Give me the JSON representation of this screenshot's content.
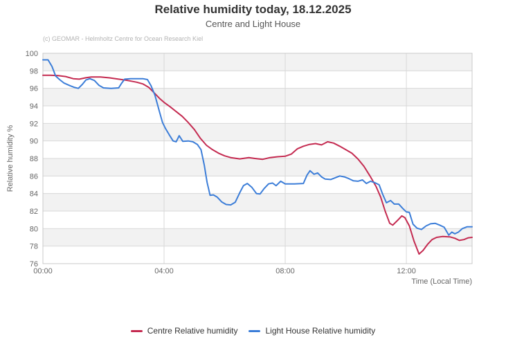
{
  "chart": {
    "title": "Relative humidity today, 18.12.2025",
    "subtitle": "Centre and Light House",
    "credit": "(c) GEOMAR - Helmholtz Centre for Ocean Research Kiel"
  },
  "legend": {
    "items": [
      {
        "label": "Centre Relative humidity",
        "color": "#c42a50"
      },
      {
        "label": "Light House Relative humidity",
        "color": "#3b7dd8"
      }
    ]
  },
  "chart_data": {
    "type": "line",
    "title": "Relative humidity today, 18.12.2025",
    "subtitle": "Centre and Light House",
    "xlabel": "Time (Local Time)",
    "ylabel": "Relative humidity %",
    "xlim": [
      0,
      14.17
    ],
    "ylim": [
      76,
      100
    ],
    "grid": true,
    "alternating_bands": true,
    "legend_position": "bottom",
    "colors": {
      "band": "#f2f2f2",
      "gridline": "#d8d8d8",
      "plot_border": "#c9c9c9",
      "tick_label": "#666666",
      "axis_title": "#666666"
    },
    "yticks": [
      76,
      78,
      80,
      82,
      84,
      86,
      88,
      90,
      92,
      94,
      96,
      98,
      100
    ],
    "xticks": [
      {
        "hour": 0,
        "label": "00:00"
      },
      {
        "hour": 4,
        "label": "04:00"
      },
      {
        "hour": 8,
        "label": "08:00"
      },
      {
        "hour": 12,
        "label": "12:00"
      }
    ],
    "series": [
      {
        "name": "Centre Relative humidity",
        "color": "#c42a50",
        "points": [
          [
            0,
            97.5
          ],
          [
            0.25,
            97.5
          ],
          [
            0.5,
            97.45
          ],
          [
            0.75,
            97.35
          ],
          [
            1.0,
            97.1
          ],
          [
            1.2,
            97.05
          ],
          [
            1.4,
            97.2
          ],
          [
            1.6,
            97.3
          ],
          [
            1.9,
            97.3
          ],
          [
            2.2,
            97.2
          ],
          [
            2.5,
            97.05
          ],
          [
            2.8,
            96.9
          ],
          [
            3.1,
            96.7
          ],
          [
            3.3,
            96.5
          ],
          [
            3.5,
            96.1
          ],
          [
            3.7,
            95.4
          ],
          [
            3.85,
            94.85
          ],
          [
            4.0,
            94.4
          ],
          [
            4.2,
            93.9
          ],
          [
            4.4,
            93.35
          ],
          [
            4.6,
            92.8
          ],
          [
            4.8,
            92.1
          ],
          [
            5.0,
            91.3
          ],
          [
            5.2,
            90.3
          ],
          [
            5.4,
            89.5
          ],
          [
            5.6,
            89.0
          ],
          [
            5.8,
            88.6
          ],
          [
            6.0,
            88.3
          ],
          [
            6.2,
            88.1
          ],
          [
            6.5,
            87.95
          ],
          [
            6.8,
            88.1
          ],
          [
            7.0,
            88.0
          ],
          [
            7.25,
            87.9
          ],
          [
            7.5,
            88.1
          ],
          [
            7.75,
            88.2
          ],
          [
            8.0,
            88.25
          ],
          [
            8.2,
            88.5
          ],
          [
            8.4,
            89.1
          ],
          [
            8.6,
            89.4
          ],
          [
            8.8,
            89.6
          ],
          [
            9.0,
            89.7
          ],
          [
            9.2,
            89.55
          ],
          [
            9.4,
            89.9
          ],
          [
            9.6,
            89.75
          ],
          [
            9.8,
            89.4
          ],
          [
            10.0,
            89.0
          ],
          [
            10.2,
            88.6
          ],
          [
            10.4,
            87.95
          ],
          [
            10.6,
            87.1
          ],
          [
            10.8,
            86.0
          ],
          [
            11.0,
            84.8
          ],
          [
            11.15,
            83.6
          ],
          [
            11.3,
            82.0
          ],
          [
            11.45,
            80.6
          ],
          [
            11.55,
            80.4
          ],
          [
            11.7,
            80.9
          ],
          [
            11.85,
            81.45
          ],
          [
            11.95,
            81.25
          ],
          [
            12.1,
            80.3
          ],
          [
            12.25,
            78.6
          ],
          [
            12.42,
            77.1
          ],
          [
            12.55,
            77.5
          ],
          [
            12.7,
            78.2
          ],
          [
            12.85,
            78.75
          ],
          [
            13.0,
            79.0
          ],
          [
            13.2,
            79.1
          ],
          [
            13.45,
            79.05
          ],
          [
            13.6,
            78.9
          ],
          [
            13.75,
            78.65
          ],
          [
            13.9,
            78.75
          ],
          [
            14.05,
            78.95
          ],
          [
            14.17,
            79.0
          ]
        ]
      },
      {
        "name": "Light House Relative humidity",
        "color": "#3b7dd8",
        "points": [
          [
            0,
            99.25
          ],
          [
            0.17,
            99.25
          ],
          [
            0.3,
            98.5
          ],
          [
            0.42,
            97.4
          ],
          [
            0.55,
            97.0
          ],
          [
            0.7,
            96.6
          ],
          [
            0.9,
            96.3
          ],
          [
            1.05,
            96.1
          ],
          [
            1.17,
            96.0
          ],
          [
            1.3,
            96.45
          ],
          [
            1.42,
            96.95
          ],
          [
            1.55,
            97.1
          ],
          [
            1.7,
            96.9
          ],
          [
            1.85,
            96.35
          ],
          [
            2.0,
            96.05
          ],
          [
            2.25,
            96.0
          ],
          [
            2.5,
            96.05
          ],
          [
            2.6,
            96.6
          ],
          [
            2.7,
            97.05
          ],
          [
            2.9,
            97.1
          ],
          [
            3.1,
            97.1
          ],
          [
            3.3,
            97.1
          ],
          [
            3.45,
            97.0
          ],
          [
            3.57,
            96.3
          ],
          [
            3.7,
            95.2
          ],
          [
            3.85,
            93.3
          ],
          [
            3.95,
            92.1
          ],
          [
            4.05,
            91.4
          ],
          [
            4.17,
            90.7
          ],
          [
            4.3,
            90.0
          ],
          [
            4.4,
            89.9
          ],
          [
            4.5,
            90.6
          ],
          [
            4.62,
            89.95
          ],
          [
            4.8,
            90.0
          ],
          [
            4.95,
            89.9
          ],
          [
            5.1,
            89.6
          ],
          [
            5.22,
            89.0
          ],
          [
            5.33,
            87.2
          ],
          [
            5.42,
            85.3
          ],
          [
            5.52,
            83.8
          ],
          [
            5.63,
            83.85
          ],
          [
            5.75,
            83.6
          ],
          [
            5.9,
            83.05
          ],
          [
            6.05,
            82.75
          ],
          [
            6.2,
            82.7
          ],
          [
            6.35,
            83.0
          ],
          [
            6.5,
            84.1
          ],
          [
            6.62,
            84.9
          ],
          [
            6.75,
            85.15
          ],
          [
            6.9,
            84.7
          ],
          [
            7.05,
            84.0
          ],
          [
            7.17,
            83.95
          ],
          [
            7.3,
            84.55
          ],
          [
            7.45,
            85.1
          ],
          [
            7.58,
            85.2
          ],
          [
            7.7,
            84.9
          ],
          [
            7.85,
            85.4
          ],
          [
            8.0,
            85.1
          ],
          [
            8.3,
            85.1
          ],
          [
            8.6,
            85.15
          ],
          [
            8.72,
            86.1
          ],
          [
            8.82,
            86.6
          ],
          [
            8.95,
            86.2
          ],
          [
            9.07,
            86.35
          ],
          [
            9.2,
            85.9
          ],
          [
            9.32,
            85.65
          ],
          [
            9.5,
            85.6
          ],
          [
            9.65,
            85.8
          ],
          [
            9.8,
            86.0
          ],
          [
            9.95,
            85.9
          ],
          [
            10.1,
            85.7
          ],
          [
            10.25,
            85.45
          ],
          [
            10.4,
            85.4
          ],
          [
            10.55,
            85.55
          ],
          [
            10.68,
            85.15
          ],
          [
            10.82,
            85.4
          ],
          [
            10.95,
            85.25
          ],
          [
            11.1,
            85.0
          ],
          [
            11.22,
            83.9
          ],
          [
            11.34,
            82.95
          ],
          [
            11.48,
            83.2
          ],
          [
            11.6,
            82.8
          ],
          [
            11.75,
            82.8
          ],
          [
            11.88,
            82.3
          ],
          [
            12.0,
            81.9
          ],
          [
            12.1,
            81.85
          ],
          [
            12.22,
            80.5
          ],
          [
            12.35,
            80.05
          ],
          [
            12.5,
            79.9
          ],
          [
            12.65,
            80.3
          ],
          [
            12.8,
            80.55
          ],
          [
            12.95,
            80.6
          ],
          [
            13.1,
            80.4
          ],
          [
            13.25,
            80.15
          ],
          [
            13.4,
            79.25
          ],
          [
            13.5,
            79.6
          ],
          [
            13.6,
            79.4
          ],
          [
            13.72,
            79.6
          ],
          [
            13.85,
            80.0
          ],
          [
            14.0,
            80.2
          ],
          [
            14.17,
            80.2
          ]
        ]
      }
    ]
  }
}
